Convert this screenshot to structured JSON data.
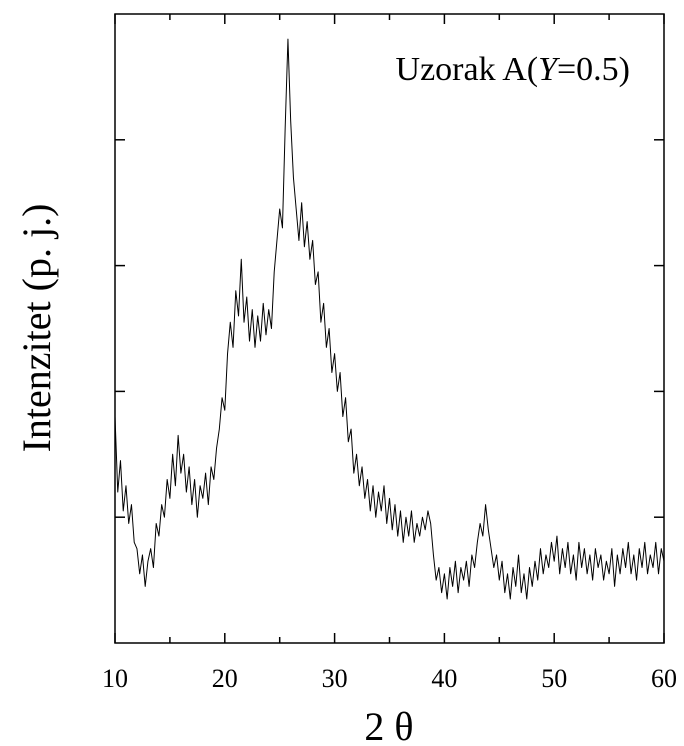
{
  "chart_data": {
    "type": "line",
    "title": [
      "Uzorak A(",
      "Y",
      "=0.5)"
    ],
    "xlabel": "2 θ",
    "ylabel": "Intenzitet (p. j.)",
    "xlim": [
      10,
      60
    ],
    "xticks": [
      10,
      20,
      30,
      40,
      50,
      60
    ],
    "xminorticks": [
      15,
      25,
      35,
      45,
      55
    ],
    "ylim": [
      0,
      5
    ],
    "yticks": [
      1,
      2,
      3,
      4
    ],
    "x": [
      10,
      10.25,
      10.5,
      10.75,
      11,
      11.25,
      11.5,
      11.75,
      12,
      12.25,
      12.5,
      12.75,
      13,
      13.25,
      13.5,
      13.75,
      14,
      14.25,
      14.5,
      14.75,
      15,
      15.25,
      15.5,
      15.75,
      16,
      16.25,
      16.5,
      16.75,
      17,
      17.25,
      17.5,
      17.75,
      18,
      18.25,
      18.5,
      18.75,
      19,
      19.25,
      19.5,
      19.75,
      20,
      20.25,
      20.5,
      20.75,
      21,
      21.25,
      21.5,
      21.75,
      22,
      22.25,
      22.5,
      22.75,
      23,
      23.25,
      23.5,
      23.75,
      24,
      24.25,
      24.5,
      24.75,
      25,
      25.25,
      25.5,
      25.75,
      26,
      26.25,
      26.5,
      26.75,
      27,
      27.25,
      27.5,
      27.75,
      28,
      28.25,
      28.5,
      28.75,
      29,
      29.25,
      29.5,
      29.75,
      30,
      30.25,
      30.5,
      30.75,
      31,
      31.25,
      31.5,
      31.75,
      32,
      32.25,
      32.5,
      32.75,
      33,
      33.25,
      33.5,
      33.75,
      34,
      34.25,
      34.5,
      34.75,
      35,
      35.25,
      35.5,
      35.75,
      36,
      36.25,
      36.5,
      36.75,
      37,
      37.25,
      37.5,
      37.75,
      38,
      38.25,
      38.5,
      38.75,
      39,
      39.25,
      39.5,
      39.75,
      40,
      40.25,
      40.5,
      40.75,
      41,
      41.25,
      41.5,
      41.75,
      42,
      42.25,
      42.5,
      42.75,
      43,
      43.25,
      43.5,
      43.75,
      44,
      44.25,
      44.5,
      44.75,
      45,
      45.25,
      45.5,
      45.75,
      46,
      46.25,
      46.5,
      46.75,
      47,
      47.25,
      47.5,
      47.75,
      48,
      48.25,
      48.5,
      48.75,
      49,
      49.25,
      49.5,
      49.75,
      50,
      50.25,
      50.5,
      50.75,
      51,
      51.25,
      51.5,
      51.75,
      52,
      52.25,
      52.5,
      52.75,
      53,
      53.25,
      53.5,
      53.75,
      54,
      54.25,
      54.5,
      54.75,
      55,
      55.25,
      55.5,
      55.75,
      56,
      56.25,
      56.5,
      56.75,
      57,
      57.25,
      57.5,
      57.75,
      58,
      58.25,
      58.5,
      58.75,
      59,
      59.25,
      59.5,
      59.75,
      60
    ],
    "series": [
      {
        "color": "#000000",
        "values": [
          1.8,
          1.2,
          1.45,
          1.05,
          1.25,
          0.95,
          1.1,
          0.8,
          0.75,
          0.55,
          0.7,
          0.45,
          0.65,
          0.75,
          0.6,
          0.95,
          0.85,
          1.1,
          1.0,
          1.3,
          1.15,
          1.5,
          1.25,
          1.65,
          1.35,
          1.5,
          1.2,
          1.4,
          1.1,
          1.3,
          1.0,
          1.25,
          1.15,
          1.35,
          1.1,
          1.4,
          1.3,
          1.55,
          1.7,
          1.95,
          1.85,
          2.3,
          2.55,
          2.35,
          2.8,
          2.6,
          3.05,
          2.55,
          2.75,
          2.4,
          2.65,
          2.35,
          2.6,
          2.4,
          2.7,
          2.45,
          2.65,
          2.5,
          2.95,
          3.2,
          3.45,
          3.3,
          4.1,
          4.8,
          4.15,
          3.7,
          3.45,
          3.2,
          3.5,
          3.15,
          3.35,
          3.05,
          3.2,
          2.85,
          2.95,
          2.55,
          2.7,
          2.35,
          2.5,
          2.15,
          2.3,
          2.0,
          2.15,
          1.8,
          1.95,
          1.6,
          1.7,
          1.35,
          1.5,
          1.25,
          1.4,
          1.15,
          1.3,
          1.05,
          1.25,
          1.0,
          1.2,
          1.05,
          1.25,
          0.95,
          1.15,
          0.9,
          1.1,
          0.85,
          1.05,
          0.8,
          1.0,
          0.85,
          1.05,
          0.8,
          0.95,
          0.85,
          1.0,
          0.9,
          1.05,
          0.95,
          0.7,
          0.5,
          0.6,
          0.4,
          0.55,
          0.35,
          0.6,
          0.45,
          0.65,
          0.4,
          0.6,
          0.5,
          0.65,
          0.45,
          0.7,
          0.6,
          0.8,
          0.95,
          0.85,
          1.1,
          0.9,
          0.75,
          0.6,
          0.7,
          0.5,
          0.65,
          0.4,
          0.55,
          0.35,
          0.6,
          0.45,
          0.7,
          0.4,
          0.55,
          0.35,
          0.6,
          0.45,
          0.65,
          0.5,
          0.75,
          0.55,
          0.7,
          0.6,
          0.8,
          0.65,
          0.85,
          0.55,
          0.75,
          0.6,
          0.8,
          0.55,
          0.7,
          0.5,
          0.8,
          0.6,
          0.75,
          0.55,
          0.7,
          0.5,
          0.75,
          0.6,
          0.7,
          0.5,
          0.65,
          0.55,
          0.75,
          0.45,
          0.7,
          0.55,
          0.75,
          0.6,
          0.8,
          0.55,
          0.7,
          0.5,
          0.75,
          0.6,
          0.8,
          0.55,
          0.7,
          0.6,
          0.8,
          0.55,
          0.75,
          0.65
        ]
      }
    ]
  }
}
